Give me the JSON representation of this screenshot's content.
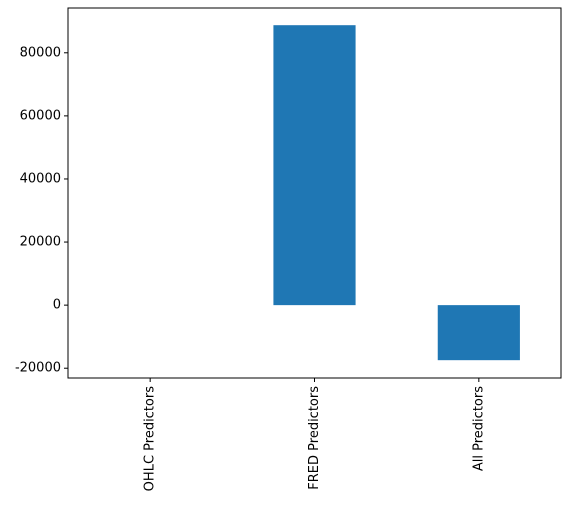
{
  "chart_data": {
    "type": "bar",
    "categories": [
      "OHLC Predictors",
      "FRED Predictors",
      "All Predictors"
    ],
    "values": [
      0,
      88750,
      -17450
    ],
    "color": "#1f77b4",
    "ylim": [
      -23100,
      94200
    ],
    "yticks": [
      -20000,
      0,
      20000,
      40000,
      60000,
      80000
    ],
    "grid": false
  }
}
